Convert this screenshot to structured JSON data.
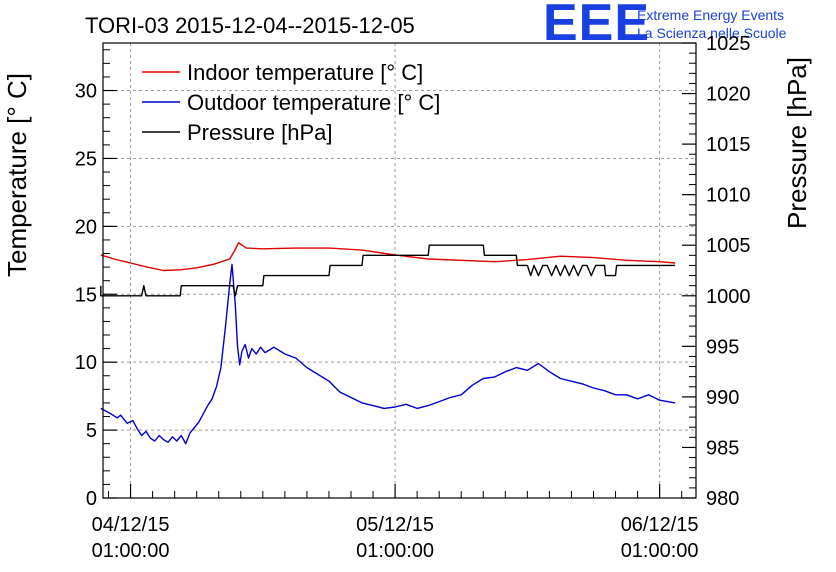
{
  "chart_data": {
    "type": "line",
    "title": "TORI-03 2015-12-04--2015-12-05",
    "logo": {
      "text": "EEE",
      "line1": "Extreme Energy Events",
      "line2": "La Scienza nelle Scuole",
      "color": "#1a3fe0"
    },
    "x_axis": {
      "unit": "hours since 04/12/15 00:00",
      "range": [
        -2.5,
        51.3
      ],
      "ticks": [
        {
          "x": 0,
          "date": "04/12/15",
          "time": "01:00:00"
        },
        {
          "x": 24,
          "date": "05/12/15",
          "time": "01:00:00"
        },
        {
          "x": 48,
          "date": "06/12/15",
          "time": "01:00:00"
        }
      ]
    },
    "y_left": {
      "label": "Temperature [° C]",
      "range": [
        0,
        33.5
      ],
      "ticks": [
        0,
        5,
        10,
        15,
        20,
        25,
        30
      ]
    },
    "y_right": {
      "label": "Pressure [hPa]",
      "range": [
        980,
        1025
      ],
      "ticks": [
        980,
        985,
        990,
        995,
        1000,
        1005,
        1010,
        1015,
        1020,
        1025
      ]
    },
    "grid": true,
    "legend_position": "top-left",
    "series": [
      {
        "name": "Indoor temperature [° C]",
        "axis": "left",
        "color": "#e00000",
        "x": [
          -2.7,
          -1.5,
          0,
          1.5,
          3,
          4.5,
          6,
          7.5,
          9,
          9.5,
          9.8,
          10.5,
          12,
          15,
          18,
          21,
          24,
          27,
          30,
          33,
          36,
          39,
          42,
          45,
          48,
          49.4
        ],
        "y": [
          17.9,
          17.6,
          17.3,
          17.0,
          16.75,
          16.8,
          16.95,
          17.2,
          17.6,
          18.3,
          18.8,
          18.4,
          18.35,
          18.4,
          18.4,
          18.25,
          17.9,
          17.6,
          17.5,
          17.4,
          17.55,
          17.8,
          17.7,
          17.5,
          17.4,
          17.3
        ]
      },
      {
        "name": "Outdoor temperature [° C]",
        "axis": "left",
        "color": "#0000d0",
        "x": [
          -2.7,
          -1.8,
          -1.2,
          -0.9,
          -0.3,
          0.2,
          0.6,
          1,
          1.4,
          1.8,
          2.2,
          2.6,
          3,
          3.4,
          3.8,
          4.2,
          4.6,
          5,
          5.4,
          5.8,
          6.2,
          6.6,
          7,
          7.4,
          7.8,
          8.2,
          8.6,
          9,
          9.2,
          9.5,
          9.7,
          9.9,
          10.1,
          10.4,
          10.7,
          11,
          11.4,
          11.8,
          12.2,
          12.6,
          13,
          14,
          15,
          16,
          17,
          18,
          19,
          20,
          21,
          22,
          23,
          24,
          25,
          26,
          27,
          28,
          29,
          30,
          31,
          32,
          33,
          34,
          35,
          36,
          37,
          38,
          39,
          40,
          41,
          42,
          43,
          44,
          45,
          46,
          47,
          48,
          49.4
        ],
        "y": [
          6.6,
          6.2,
          5.9,
          6.1,
          5.5,
          5.7,
          5.1,
          4.6,
          4.9,
          4.4,
          4.2,
          4.6,
          4.3,
          4.1,
          4.5,
          4.2,
          4.6,
          4.0,
          4.8,
          5.2,
          5.6,
          6.2,
          6.8,
          7.3,
          8.2,
          9.6,
          12.5,
          15.8,
          17.2,
          14.2,
          11.2,
          9.8,
          10.8,
          11.3,
          10.3,
          11.0,
          10.6,
          11.1,
          10.7,
          10.9,
          11.1,
          10.6,
          10.3,
          9.6,
          9.1,
          8.6,
          7.8,
          7.4,
          7.0,
          6.8,
          6.6,
          6.7,
          6.9,
          6.6,
          6.8,
          7.1,
          7.4,
          7.6,
          8.3,
          8.8,
          8.9,
          9.3,
          9.6,
          9.4,
          9.9,
          9.3,
          8.8,
          8.6,
          8.4,
          8.1,
          7.9,
          7.6,
          7.6,
          7.3,
          7.6,
          7.2,
          7.0
        ]
      },
      {
        "name": "Pressure [hPa]",
        "axis": "right",
        "color": "#000000",
        "x": [
          -2.7,
          -2.7,
          1.0,
          1.2,
          1.4,
          4.5,
          4.6,
          9.3,
          9.5,
          9.7,
          12.0,
          12.1,
          16.3,
          16.4,
          18.0,
          18.1,
          21.0,
          21.1,
          27.0,
          27.1,
          32.0,
          32.1,
          35.0,
          35.1,
          36.0,
          36.3,
          36.6,
          37.0,
          37.4,
          37.8,
          38.2,
          38.6,
          39.0,
          39.4,
          39.8,
          40.2,
          40.6,
          41.0,
          41.4,
          41.8,
          42.2,
          43.0,
          43.1,
          44.0,
          44.1,
          49.4
        ],
        "y": [
          1001,
          1000,
          1000,
          1001,
          1000,
          1000,
          1001,
          1001,
          1000,
          1001,
          1001,
          1002,
          1002,
          1002,
          1002,
          1003,
          1003,
          1004,
          1004,
          1005,
          1005,
          1004,
          1004,
          1003,
          1003,
          1002,
          1003,
          1002,
          1003,
          1003,
          1002,
          1003,
          1002,
          1003,
          1002,
          1003,
          1002,
          1003,
          1003,
          1002,
          1003,
          1003,
          1002,
          1002,
          1003,
          1003
        ]
      }
    ]
  }
}
